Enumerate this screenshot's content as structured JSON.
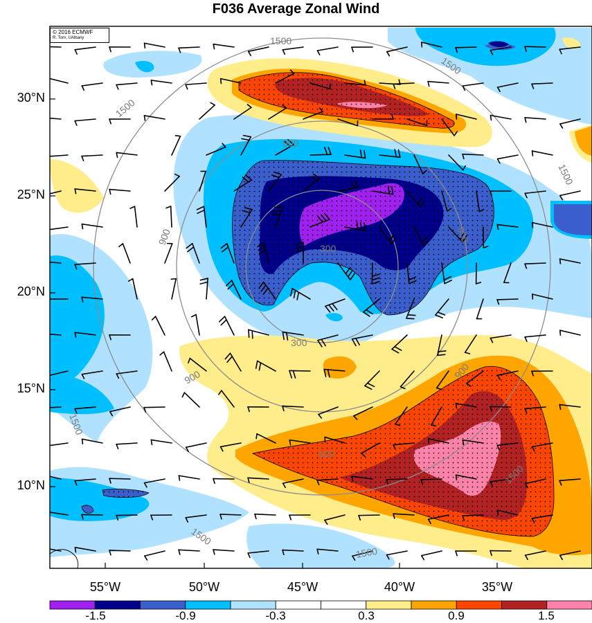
{
  "title": "F036 Average Zonal Wind",
  "credit": {
    "line1": "© 2016 ECMWF",
    "line2": "R. Torn, UAlbany"
  },
  "lat_labels": [
    "30°N",
    "25°N",
    "20°N",
    "15°N",
    "10°N"
  ],
  "lon_labels": [
    "55°W",
    "50°W",
    "45°W",
    "40°W",
    "35°W"
  ],
  "colorbar": {
    "colors": [
      "#a020f0",
      "#00008b",
      "#3a5fcd",
      "#00bfff",
      "#b0e2ff",
      "#ffffff",
      "#ffffff",
      "#ffec8b",
      "#ffa500",
      "#ff4500",
      "#b22222",
      "#ff82ab"
    ],
    "labels": [
      "-1.5",
      "-0.9",
      "-0.3",
      "0.3",
      "0.9",
      "1.5"
    ]
  },
  "contour_labels": {
    "inner": "300",
    "middle": "900",
    "outer": "1500"
  }
}
